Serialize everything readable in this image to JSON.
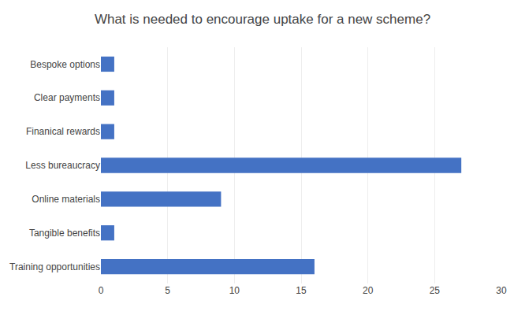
{
  "chart_data": {
    "type": "bar",
    "orientation": "horizontal",
    "title": "What is needed to encourage uptake for a new scheme?",
    "categories": [
      "Training opportunities",
      "Tangible benefits",
      "Online materials",
      "Less bureaucracy",
      "Finanical rewards",
      "Clear payments",
      "Bespoke options"
    ],
    "values": [
      16,
      1,
      9,
      27,
      1,
      1,
      1
    ],
    "color": "#4472C4",
    "xlim": [
      0,
      30
    ],
    "xticks": [
      0,
      5,
      10,
      15,
      20,
      25,
      30
    ],
    "grid": true
  }
}
